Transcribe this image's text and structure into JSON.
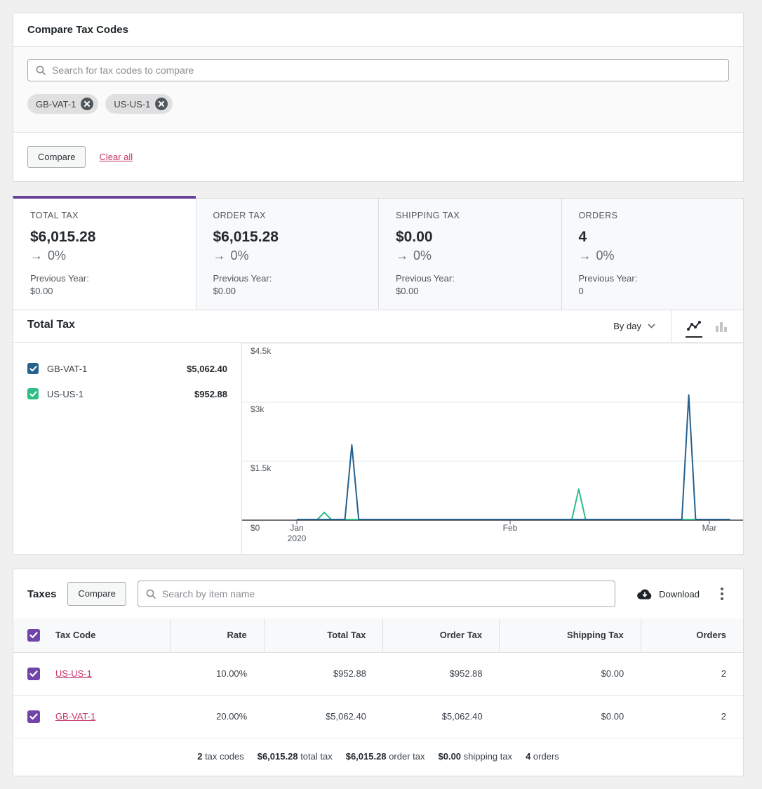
{
  "compare_card": {
    "title": "Compare Tax Codes",
    "search_placeholder": "Search for tax codes to compare",
    "chips": [
      {
        "label": "GB-VAT-1"
      },
      {
        "label": "US-US-1"
      }
    ],
    "compare_button": "Compare",
    "clear_all": "Clear all"
  },
  "icons": {
    "right_arrow": "→"
  },
  "summary_tiles": [
    {
      "label": "TOTAL TAX",
      "value": "$6,015.28",
      "delta": "0%",
      "prev_label": "Previous Year:",
      "prev_value": "$0.00",
      "selected": true
    },
    {
      "label": "ORDER TAX",
      "value": "$6,015.28",
      "delta": "0%",
      "prev_label": "Previous Year:",
      "prev_value": "$0.00",
      "selected": false
    },
    {
      "label": "SHIPPING TAX",
      "value": "$0.00",
      "delta": "0%",
      "prev_label": "Previous Year:",
      "prev_value": "$0.00",
      "selected": false
    },
    {
      "label": "ORDERS",
      "value": "4",
      "delta": "0%",
      "prev_label": "Previous Year:",
      "prev_value": "0",
      "selected": false
    }
  ],
  "chart_section": {
    "title": "Total Tax",
    "interval_selector": "By day",
    "legend": [
      {
        "label": "GB-VAT-1",
        "value": "$5,062.40",
        "color": "#24618e",
        "checked": true
      },
      {
        "label": "US-US-1",
        "value": "$952.88",
        "color": "#2fbd86",
        "checked": true
      }
    ]
  },
  "chart_data": {
    "type": "line",
    "title": "Total Tax",
    "interval": "By day",
    "x_start": "2020-01-01",
    "x_end": "2020-03-04",
    "ylim": [
      0,
      4500
    ],
    "grid": "horizontal",
    "legend_position": "left",
    "y_ticks": [
      "$0",
      "$1.5k",
      "$3k",
      "$4.5k"
    ],
    "x_ticks": [
      {
        "label": "Jan",
        "sublabel": "2020"
      },
      {
        "label": "Feb",
        "sublabel": ""
      },
      {
        "label": "Mar",
        "sublabel": ""
      }
    ],
    "series": [
      {
        "name": "GB-VAT-1",
        "color": "#24618e",
        "total": 5062.4,
        "points": [
          {
            "date": "2020-01-09",
            "value": 1898
          },
          {
            "date": "2020-02-27",
            "value": 3164
          }
        ],
        "all_other_days_value": 0
      },
      {
        "name": "US-US-1",
        "color": "#2fbd86",
        "total": 952.88,
        "points": [
          {
            "date": "2020-01-05",
            "value": 181
          },
          {
            "date": "2020-02-11",
            "value": 772
          }
        ],
        "all_other_days_value": 0
      }
    ]
  },
  "table_section": {
    "title": "Taxes",
    "compare_button": "Compare",
    "search_placeholder": "Search by item name",
    "download_label": "Download",
    "columns": [
      "Tax Code",
      "Rate",
      "Total Tax",
      "Order Tax",
      "Shipping Tax",
      "Orders"
    ],
    "rows": [
      {
        "tax_code": "US-US-1",
        "rate": "10.00%",
        "total_tax": "$952.88",
        "order_tax": "$952.88",
        "shipping_tax": "$0.00",
        "orders": "2",
        "checked": true
      },
      {
        "tax_code": "GB-VAT-1",
        "rate": "20.00%",
        "total_tax": "$5,062.40",
        "order_tax": "$5,062.40",
        "shipping_tax": "$0.00",
        "orders": "2",
        "checked": true
      }
    ],
    "summary": [
      {
        "value": "2",
        "label": "tax codes"
      },
      {
        "value": "$6,015.28",
        "label": "total tax"
      },
      {
        "value": "$6,015.28",
        "label": "order tax"
      },
      {
        "value": "$0.00",
        "label": "shipping tax"
      },
      {
        "value": "4",
        "label": "orders"
      }
    ]
  },
  "colors": {
    "accent_purple": "#674399",
    "checkbox_purple": "#7145a8",
    "series_blue": "#24618e",
    "series_green": "#2fbd86",
    "link_pink": "#c9356d"
  }
}
